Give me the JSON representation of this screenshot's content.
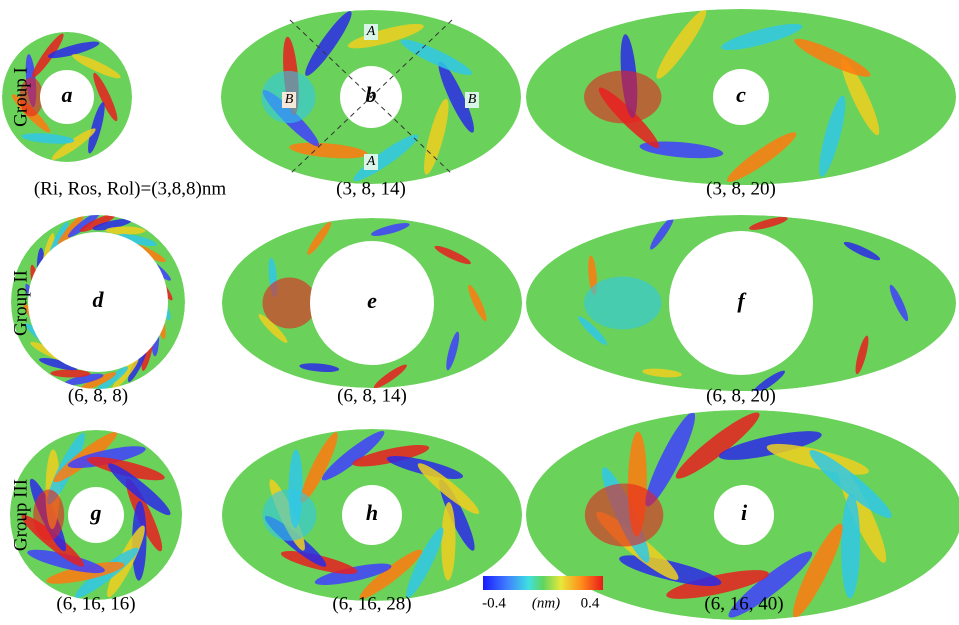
{
  "groups": [
    "Group I",
    "Group II",
    "Group III"
  ],
  "panels": [
    {
      "letter": "a",
      "caption": "(Ri, Ros, Rol)=(3,8,8)nm"
    },
    {
      "letter": "b",
      "caption": "(3, 8, 14)",
      "annotations": [
        "A",
        "A",
        "B",
        "B"
      ]
    },
    {
      "letter": "c",
      "caption": "(3, 8, 20)"
    },
    {
      "letter": "d",
      "caption": "(6, 8, 8)"
    },
    {
      "letter": "e",
      "caption": "(6, 8, 14)"
    },
    {
      "letter": "f",
      "caption": "(6, 8, 20)"
    },
    {
      "letter": "g",
      "caption": "(6, 16, 16)"
    },
    {
      "letter": "h",
      "caption": "(6, 16, 28)"
    },
    {
      "letter": "i",
      "caption": "(6, 16, 40)"
    }
  ],
  "colorbar": {
    "min": -0.4,
    "max": 0.4,
    "unit": "(nm)"
  }
}
